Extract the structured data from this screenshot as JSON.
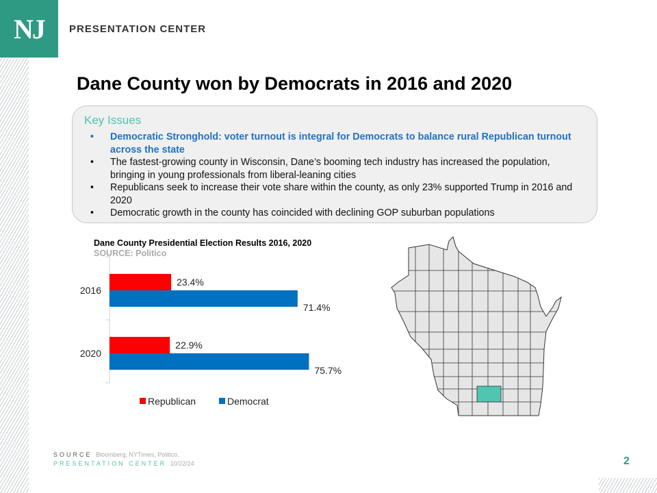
{
  "header": {
    "logo": "NJ",
    "brand": "PRESENTATION CENTER"
  },
  "title": "Dane County won by Democrats in 2016 and 2020",
  "key_issues": {
    "heading": "Key Issues",
    "items": [
      "Democratic Stronghold: voter turnout is integral for Democrats to balance rural Republican turnout across the state",
      "The fastest-growing county in Wisconsin, Dane’s booming tech industry has increased the population, bringing in young professionals from liberal-leaning cities",
      "Republicans seek to increase their vote share within the county, as only 23% supported Trump in 2016 and 2020",
      "Democratic growth in the county has coincided with declining GOP suburban populations"
    ]
  },
  "chart_data": {
    "type": "bar",
    "orientation": "horizontal",
    "title": "Dane County Presidential Election Results 2016, 2020",
    "subtitle": "SOURCE: Politico",
    "categories": [
      "2016",
      "2020"
    ],
    "series": [
      {
        "name": "Republican",
        "color": "#ff0000",
        "values": [
          23.4,
          22.9
        ],
        "labels": [
          "23.4%",
          "22.9%"
        ]
      },
      {
        "name": "Democrat",
        "color": "#0070c0",
        "values": [
          71.4,
          75.7
        ],
        "labels": [
          "71.4%",
          "75.7%"
        ]
      }
    ],
    "legend": "bottom",
    "grid": false
  },
  "map": {
    "highlight_color": "#52c5b0",
    "fill": "#e6e6e6"
  },
  "footer": {
    "source_label": "SOURCE",
    "source": "Bloomberg, NYTimes, Politico.",
    "center": "PRESENTATION CENTER",
    "date": "10/22/24",
    "page": "2"
  }
}
